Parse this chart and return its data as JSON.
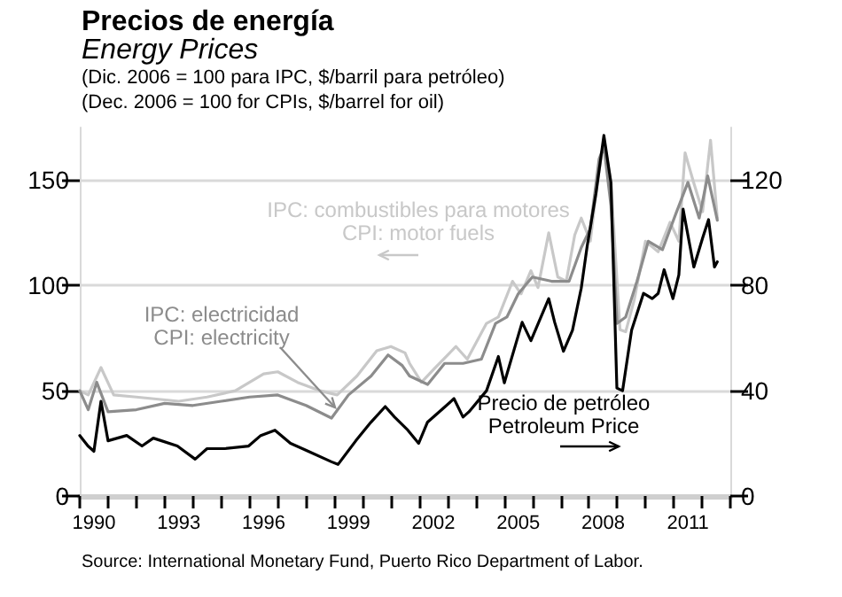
{
  "chart_data": {
    "type": "line",
    "title": "Precios de energía",
    "subtitle": "Energy Prices",
    "annotations": [
      "(Dic. 2006 = 100 para IPC, $/barril para petróleo)",
      "(Dec. 2006 = 100 for CPIs, $/barrel for oil)",
      "Source: International Monetary Fund, Puerto Rico Department of Labor."
    ],
    "xlim": [
      1990,
      2013
    ],
    "xticks": [
      {
        "value": 1990,
        "label": null
      },
      {
        "value": 1991,
        "label": null
      },
      {
        "value": 1992,
        "label": null
      },
      {
        "value": 1993,
        "label": null
      },
      {
        "value": 1994,
        "label": null
      },
      {
        "value": 1995,
        "label": null
      },
      {
        "value": 1996,
        "label": null
      },
      {
        "value": 1997,
        "label": null
      },
      {
        "value": 1998,
        "label": null
      },
      {
        "value": 1999,
        "label": null
      },
      {
        "value": 2000,
        "label": null
      },
      {
        "value": 2001,
        "label": null
      },
      {
        "value": 2002,
        "label": null
      },
      {
        "value": 2003,
        "label": null
      },
      {
        "value": 2004,
        "label": null
      },
      {
        "value": 2005,
        "label": null
      },
      {
        "value": 2006,
        "label": null
      },
      {
        "value": 2007,
        "label": null
      },
      {
        "value": 2008,
        "label": null
      },
      {
        "value": 2009,
        "label": null
      },
      {
        "value": 2010,
        "label": null
      },
      {
        "value": 2011,
        "label": null
      },
      {
        "value": 2012,
        "label": null
      },
      {
        "value": 2013,
        "label": null
      },
      {
        "value": 1990.5,
        "label": "1990"
      },
      {
        "value": 1993.5,
        "label": "1993"
      },
      {
        "value": 1996.5,
        "label": "1996"
      },
      {
        "value": 1999.5,
        "label": "1999"
      },
      {
        "value": 2002.5,
        "label": "2002"
      },
      {
        "value": 2005.5,
        "label": "2005"
      },
      {
        "value": 2008.5,
        "label": "2008"
      },
      {
        "value": 2011.5,
        "label": "2011"
      }
    ],
    "ylim": [
      0,
      175
    ],
    "yticks": [
      0,
      50,
      100,
      150
    ],
    "y2lim": [
      0,
      140
    ],
    "y2ticks": [
      0,
      40,
      80,
      120
    ],
    "grid": "y",
    "marker": "none",
    "series": [
      {
        "name": "IPC: combustibles para motores\nCPI: motor fuels",
        "color": "#c8c8c8",
        "x": [
          1990.0,
          1990.3,
          1990.75,
          1991.2,
          1992.0,
          1993.5,
          1994.5,
          1995.5,
          1996.5,
          1997.0,
          1997.7,
          1998.5,
          1999.1,
          1999.8,
          2000.5,
          2001.0,
          2001.5,
          2001.66,
          2002.08,
          2002.5,
          2003.3,
          2003.7,
          2004.38,
          2004.8,
          2005.3,
          2005.6,
          2005.95,
          2006.2,
          2006.58,
          2006.9,
          2007.2,
          2007.5,
          2007.73,
          2008.05,
          2008.3,
          2008.53,
          2008.78,
          2009.1,
          2009.3,
          2009.6,
          2010.0,
          2010.45,
          2010.87,
          2011.18,
          2011.4,
          2011.7,
          2012.02,
          2012.3,
          2012.54
        ],
        "values": [
          50,
          48,
          61,
          48,
          47,
          45,
          47,
          50,
          58,
          59,
          54,
          50,
          48,
          57,
          69,
          71,
          68,
          63,
          54,
          60,
          71,
          65,
          82,
          85,
          102,
          96,
          107,
          99,
          125,
          104,
          102,
          124,
          132,
          121,
          149,
          169,
          149,
          79,
          78,
          93,
          121,
          116,
          130,
          121,
          163,
          149,
          135,
          169,
          132
        ]
      },
      {
        "name": "IPC: electricidad\nCPI: electricity",
        "color": "#8c8c8c",
        "x": [
          1990.0,
          1990.3,
          1990.6,
          1991.0,
          1992.0,
          1993.0,
          1994.0,
          1995.0,
          1996.0,
          1997.0,
          1998.0,
          1998.9,
          1999.5,
          2000.3,
          2000.9,
          2001.4,
          2001.66,
          2002.3,
          2002.9,
          2003.55,
          2004.2,
          2004.7,
          2005.1,
          2005.5,
          2006.0,
          2006.68,
          2007.3,
          2007.73,
          2008.05,
          2008.36,
          2008.53,
          2008.78,
          2009.0,
          2009.3,
          2009.7,
          2010.1,
          2010.6,
          2011.1,
          2011.5,
          2011.9,
          2012.2,
          2012.54
        ],
        "values": [
          50,
          41,
          54,
          40,
          41,
          44,
          43,
          45,
          47,
          48,
          43,
          37,
          48,
          57,
          67,
          62,
          57,
          53,
          63,
          63,
          65,
          82,
          85,
          96,
          104,
          102,
          102,
          118,
          127,
          160,
          166,
          138,
          82,
          85,
          102,
          121,
          117,
          135,
          149,
          132,
          152,
          131
        ]
      },
      {
        "name": "Precio de petróleo\nPetroleum Price",
        "color": "#000000",
        "axis": "y2",
        "x": [
          1990.0,
          1990.29,
          1990.5,
          1990.75,
          1991.0,
          1991.66,
          1992.2,
          1992.6,
          1993.45,
          1994.08,
          1994.5,
          1995.13,
          1995.97,
          1996.4,
          1996.9,
          1997.45,
          1998.08,
          1998.9,
          1999.13,
          1999.76,
          2000.29,
          2000.8,
          2001.13,
          2001.6,
          2001.98,
          2002.29,
          2002.92,
          2003.23,
          2003.55,
          2003.76,
          2004.38,
          2004.8,
          2005.01,
          2005.64,
          2005.95,
          2006.58,
          2006.79,
          2007.1,
          2007.42,
          2007.73,
          2007.94,
          2008.25,
          2008.53,
          2008.78,
          2008.99,
          2009.19,
          2009.51,
          2009.93,
          2010.24,
          2010.45,
          2010.66,
          2010.97,
          2011.18,
          2011.33,
          2011.71,
          2012.02,
          2012.23,
          2012.44,
          2012.54
        ],
        "values": [
          23,
          19,
          17,
          36,
          21,
          23,
          19,
          22,
          19,
          14,
          18,
          18,
          19,
          23,
          25,
          20,
          17,
          13,
          12,
          21,
          28,
          34,
          30,
          25,
          20,
          28,
          34,
          37,
          30,
          32,
          40,
          53,
          43,
          66,
          59,
          75,
          66,
          55,
          63,
          79,
          95,
          115,
          137,
          119,
          41,
          40,
          63,
          77,
          75,
          77,
          86,
          75,
          84,
          109,
          87,
          98,
          105,
          87,
          89
        ]
      }
    ]
  }
}
